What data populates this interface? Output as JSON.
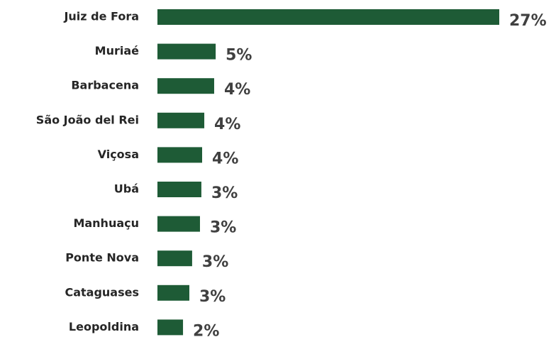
{
  "chart_data": {
    "type": "bar",
    "orientation": "horizontal",
    "categories": [
      "Juiz de Fora",
      "Muriaé",
      "Barbacena",
      "São João del Rei",
      "Viçosa",
      "Ubá",
      "Manhuaçu",
      "Ponte Nova",
      "Cataguases",
      "Leopoldina"
    ],
    "values": [
      27,
      4.6,
      4.48,
      3.7,
      3.53,
      3.47,
      3.36,
      2.74,
      2.52,
      2.02
    ],
    "value_labels": [
      "27%",
      "5%",
      "4%",
      "4%",
      "4%",
      "3%",
      "3%",
      "3%",
      "3%",
      "2%"
    ],
    "color": "#1e5b36"
  }
}
